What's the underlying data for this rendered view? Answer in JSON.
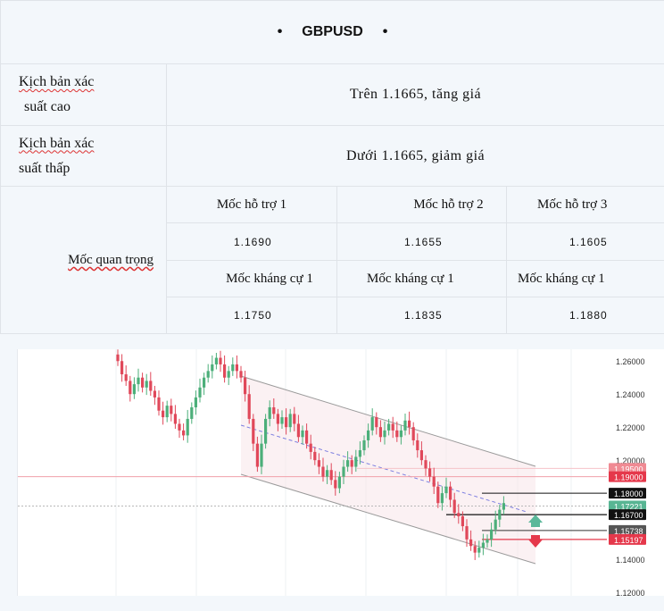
{
  "header": {
    "title": "GBPUSD",
    "bullet": "•"
  },
  "scenarios": [
    {
      "label_line1": "Kịch bản xác",
      "label_line2": "suất cao",
      "value": "Trên 1.1665, tăng giá"
    },
    {
      "label_line1": "Kịch bản xác",
      "label_line2": "suất thấp",
      "value": "Dưới 1.1665, giảm giá"
    }
  ],
  "key_levels": {
    "label": "Mốc quan trọng",
    "support_headers": [
      "Mốc hỗ trợ 1",
      "Mốc hỗ trợ 2",
      "Mốc hỗ trợ 3"
    ],
    "support_values": [
      "1.1690",
      "1.1655",
      "1.1605"
    ],
    "resistance_headers": [
      "Mốc kháng cự 1",
      "Mốc kháng cự 1",
      "Mốc kháng cự 1"
    ],
    "resistance_values": [
      "1.1750",
      "1.1835",
      "1.1880"
    ]
  },
  "chart_data": {
    "type": "candlestick",
    "ylim": [
      1.12,
      1.265
    ],
    "y_ticks": [
      "1.26000",
      "1.24000",
      "1.22000",
      "1.20000",
      "1.14000",
      "1.12000"
    ],
    "price_tags": [
      {
        "label": "1.19500",
        "value": 1.195,
        "color": "#f08a93"
      },
      {
        "label": "1.19000",
        "value": 1.19,
        "color": "#e5384b"
      },
      {
        "label": "1.18000",
        "value": 1.18,
        "color": "#111111"
      },
      {
        "label": "1.17221",
        "value": 1.17221,
        "color": "#58b593"
      },
      {
        "label": "1.16700",
        "value": 1.167,
        "color": "#111111"
      },
      {
        "label": "1.15738",
        "value": 1.15738,
        "color": "#555555"
      },
      {
        "label": "1.15197",
        "value": 1.15197,
        "color": "#e5384b"
      }
    ],
    "up_color": "#4caf7a",
    "down_color": "#e0485a",
    "closes": [
      1.26,
      1.252,
      1.248,
      1.24,
      1.246,
      1.25,
      1.244,
      1.248,
      1.242,
      1.238,
      1.23,
      1.226,
      1.233,
      1.228,
      1.222,
      1.218,
      1.215,
      1.225,
      1.232,
      1.238,
      1.244,
      1.25,
      1.254,
      1.258,
      1.262,
      1.258,
      1.25,
      1.254,
      1.258,
      1.254,
      1.25,
      1.24,
      1.225,
      1.21,
      1.196,
      1.21,
      1.225,
      1.232,
      1.228,
      1.222,
      1.226,
      1.22,
      1.228,
      1.222,
      1.214,
      1.218,
      1.21,
      1.205,
      1.2,
      1.196,
      1.19,
      1.194,
      1.188,
      1.183,
      1.19,
      1.196,
      1.2,
      1.196,
      1.202,
      1.206,
      1.212,
      1.218,
      1.226,
      1.22,
      1.214,
      1.218,
      1.222,
      1.218,
      1.214,
      1.218,
      1.224,
      1.22,
      1.212,
      1.206,
      1.2,
      1.195,
      1.19,
      1.184,
      1.174,
      1.18,
      1.184,
      1.176,
      1.168,
      1.166,
      1.16,
      1.152,
      1.148,
      1.144,
      1.147,
      1.15,
      1.152,
      1.158,
      1.164,
      1.17,
      1.174
    ]
  }
}
